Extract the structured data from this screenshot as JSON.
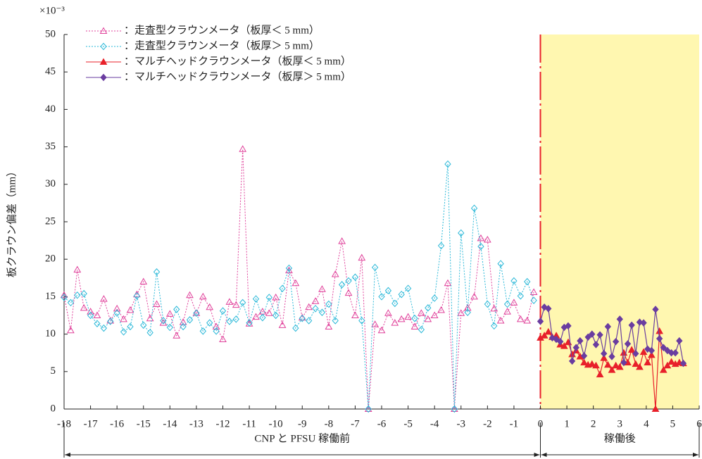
{
  "chart_data": {
    "type": "line",
    "y_exponent_label": "×10⁻³",
    "y_label": "板クラウン偏差（mm）",
    "xlim": [
      -18,
      6
    ],
    "ylim": [
      0,
      50
    ],
    "xticks": [
      -18,
      -17,
      -16,
      -15,
      -14,
      -13,
      -12,
      -11,
      -10,
      -9,
      -8,
      -7,
      -6,
      -5,
      -4,
      -3,
      -2,
      -1,
      0,
      1,
      2,
      3,
      4,
      5,
      6
    ],
    "yticks": [
      0,
      5,
      10,
      15,
      20,
      25,
      30,
      35,
      40,
      45,
      50
    ],
    "shaded_xrange": [
      0,
      6
    ],
    "shade_color": "#fff7b0",
    "vline_x": 0,
    "vline_color": "#e8202a",
    "periods": [
      {
        "label": "CNP と PFSU 稼働前",
        "range": [
          -18,
          0
        ]
      },
      {
        "label": "稼働後",
        "range": [
          0,
          6
        ]
      }
    ],
    "series": [
      {
        "name": "：走査型クラウンメータ（板厚＜ 5 mm）",
        "color": "#e0409a",
        "marker": "triangle",
        "filled": false,
        "dashed": true,
        "x": [
          -18,
          -17.75,
          -17.5,
          -17.25,
          -17,
          -16.75,
          -16.5,
          -16.25,
          -16,
          -15.75,
          -15.5,
          -15.25,
          -15,
          -14.75,
          -14.5,
          -14.25,
          -14,
          -13.75,
          -13.5,
          -13.25,
          -13,
          -12.75,
          -12.5,
          -12.25,
          -12,
          -11.75,
          -11.5,
          -11.25,
          -11,
          -10.75,
          -10.5,
          -10.25,
          -10,
          -9.75,
          -9.5,
          -9.25,
          -9,
          -8.75,
          -8.5,
          -8.25,
          -8,
          -7.75,
          -7.5,
          -7.25,
          -7,
          -6.75,
          -6.5,
          -6.25,
          -6,
          -5.75,
          -5.5,
          -5.25,
          -5,
          -4.75,
          -4.5,
          -4.25,
          -4,
          -3.75,
          -3.5,
          -3.25,
          -3,
          -2.75,
          -2.5,
          -2.25,
          -2,
          -1.75,
          -1.5,
          -1.25,
          -1,
          -0.75,
          -0.5,
          -0.25
        ],
        "values": [
          15.2,
          10.5,
          18.6,
          13.5,
          13.0,
          12.5,
          14.7,
          11.8,
          13.4,
          12.0,
          13.2,
          15.3,
          17.0,
          12.1,
          14.0,
          11.5,
          12.7,
          9.8,
          11.6,
          15.2,
          12.8,
          15.0,
          13.6,
          11.0,
          9.3,
          14.3,
          13.9,
          34.7,
          11.4,
          12.3,
          13.0,
          12.8,
          14.9,
          11.2,
          18.5,
          16.8,
          12.2,
          13.6,
          14.4,
          16.0,
          11.0,
          18.0,
          22.4,
          15.5,
          12.5,
          20.2,
          0,
          11.3,
          10.5,
          12.8,
          11.5,
          12.0,
          12.3,
          11.0,
          12.8,
          12.0,
          12.5,
          13.2,
          16.8,
          0,
          12.8,
          13.5,
          15.0,
          22.8,
          22.6,
          13.4,
          11.8,
          13.0,
          14.2,
          12.0,
          11.8,
          15.6
        ]
      },
      {
        "name": "：走査型クラウンメータ（板厚＞ 5 mm）",
        "color": "#2ab8d8",
        "marker": "diamond",
        "filled": false,
        "dashed": true,
        "x": [
          -18,
          -17.75,
          -17.5,
          -17.25,
          -17,
          -16.75,
          -16.5,
          -16.25,
          -16,
          -15.75,
          -15.5,
          -15.25,
          -15,
          -14.75,
          -14.5,
          -14.25,
          -14,
          -13.75,
          -13.5,
          -13.25,
          -13,
          -12.75,
          -12.5,
          -12.25,
          -12,
          -11.75,
          -11.5,
          -11.25,
          -11,
          -10.75,
          -10.5,
          -10.25,
          -10,
          -9.75,
          -9.5,
          -9.25,
          -9,
          -8.75,
          -8.5,
          -8.25,
          -8,
          -7.75,
          -7.5,
          -7.25,
          -7,
          -6.75,
          -6.5,
          -6.25,
          -6,
          -5.75,
          -5.5,
          -5.25,
          -5,
          -4.75,
          -4.5,
          -4.25,
          -4,
          -3.75,
          -3.5,
          -3.25,
          -3,
          -2.75,
          -2.5,
          -2.25,
          -2,
          -1.75,
          -1.5,
          -1.25,
          -1,
          -0.75,
          -0.5,
          -0.25
        ],
        "values": [
          14.9,
          14.2,
          15.2,
          15.4,
          12.5,
          11.4,
          10.8,
          11.7,
          12.8,
          10.3,
          11.0,
          15.1,
          11.2,
          10.2,
          18.3,
          11.8,
          10.9,
          13.3,
          11.0,
          11.9,
          12.8,
          10.4,
          11.5,
          10.4,
          13.1,
          11.7,
          12.0,
          14.2,
          11.5,
          14.7,
          12.2,
          14.9,
          12.5,
          16.1,
          18.8,
          10.8,
          12.1,
          11.8,
          13.4,
          12.9,
          14.0,
          11.8,
          16.6,
          17.1,
          17.6,
          11.8,
          0,
          18.9,
          15.0,
          15.8,
          14.1,
          15.3,
          16.1,
          12.1,
          10.6,
          13.5,
          14.8,
          21.8,
          32.7,
          0,
          23.5,
          12.9,
          26.8,
          21.7,
          14.0,
          11.1,
          19.4,
          14.0,
          17.1,
          15.1,
          17.0,
          14.5
        ]
      },
      {
        "name": "：マルチヘッドクラウンメータ（板厚＜ 5 mm）",
        "color": "#e8202a",
        "marker": "triangle",
        "filled": true,
        "dashed": false,
        "x": [
          0,
          0.15,
          0.3,
          0.45,
          0.6,
          0.75,
          0.9,
          1.05,
          1.2,
          1.35,
          1.5,
          1.65,
          1.8,
          1.95,
          2.1,
          2.25,
          2.4,
          2.55,
          2.7,
          2.85,
          3.0,
          3.15,
          3.3,
          3.45,
          3.6,
          3.75,
          3.9,
          4.05,
          4.2,
          4.35,
          4.5,
          4.65,
          4.8,
          4.95,
          5.1,
          5.25,
          5.4
        ],
        "values": [
          9.5,
          9.8,
          10.3,
          9.6,
          9.8,
          8.6,
          8.4,
          8.9,
          7.3,
          7.8,
          7.0,
          6.2,
          5.9,
          6.0,
          5.8,
          4.6,
          6.8,
          5.9,
          5.2,
          5.8,
          5.6,
          7.5,
          6.2,
          7.9,
          6.0,
          5.6,
          7.6,
          6.2,
          7.2,
          0,
          10.4,
          5.2,
          5.8,
          6.3,
          6.0,
          6.2,
          6.1
        ]
      },
      {
        "name": "：マルチヘッドクラウンメータ（板厚＞ 5 mm）",
        "color": "#6a3da0",
        "marker": "diamond",
        "filled": true,
        "dashed": false,
        "x": [
          0,
          0.15,
          0.3,
          0.45,
          0.6,
          0.75,
          0.9,
          1.05,
          1.2,
          1.35,
          1.5,
          1.65,
          1.8,
          1.95,
          2.1,
          2.25,
          2.4,
          2.55,
          2.7,
          2.85,
          3.0,
          3.15,
          3.3,
          3.45,
          3.6,
          3.75,
          3.9,
          4.05,
          4.2,
          4.35,
          4.5,
          4.65,
          4.8,
          4.95,
          5.1,
          5.25,
          5.4
        ],
        "values": [
          11.7,
          13.6,
          13.4,
          9.5,
          9.3,
          9.0,
          10.9,
          11.1,
          6.4,
          8.2,
          9.1,
          7.1,
          9.6,
          10.0,
          8.6,
          9.9,
          7.4,
          11.0,
          7.0,
          9.0,
          12.0,
          6.2,
          8.7,
          11.2,
          7.4,
          11.6,
          11.5,
          8.0,
          7.8,
          13.3,
          9.4,
          8.2,
          7.8,
          7.5,
          7.5,
          9.1,
          6.1
        ]
      }
    ]
  }
}
